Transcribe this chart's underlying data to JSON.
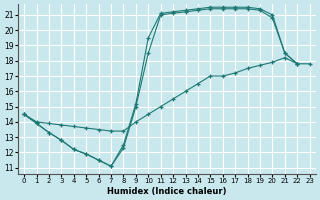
{
  "xlabel": "Humidex (Indice chaleur)",
  "bg_color": "#c8e8ee",
  "grid_color": "#ffffff",
  "line_color": "#1e7872",
  "xlim": [
    -0.5,
    23.5
  ],
  "ylim": [
    10.6,
    21.7
  ],
  "xticks": [
    0,
    1,
    2,
    3,
    4,
    5,
    6,
    7,
    8,
    9,
    10,
    11,
    12,
    13,
    14,
    15,
    16,
    17,
    18,
    19,
    20,
    21,
    22,
    23
  ],
  "yticks": [
    11,
    12,
    13,
    14,
    15,
    16,
    17,
    18,
    19,
    20,
    21
  ],
  "line_straight_x": [
    0,
    1,
    2,
    3,
    4,
    5,
    6,
    7,
    8,
    9,
    10,
    11,
    12,
    13,
    14,
    15,
    16,
    17,
    18,
    19,
    20,
    21,
    22,
    23
  ],
  "line_straight_y": [
    14.5,
    14.0,
    13.9,
    13.8,
    13.7,
    13.6,
    13.5,
    13.4,
    13.4,
    14.0,
    14.5,
    15.0,
    15.5,
    16.0,
    16.5,
    17.0,
    17.0,
    17.2,
    17.5,
    17.7,
    17.9,
    18.2,
    17.8,
    17.8
  ],
  "line_mid_x": [
    0,
    1,
    2,
    3,
    4,
    5,
    6,
    7,
    8,
    9,
    10,
    11,
    12,
    13,
    14,
    15,
    16,
    17,
    18,
    19,
    20,
    21,
    22
  ],
  "line_mid_y": [
    14.5,
    13.9,
    13.3,
    12.8,
    12.2,
    11.9,
    11.5,
    11.1,
    12.3,
    15.0,
    18.5,
    21.0,
    21.1,
    21.2,
    21.3,
    21.4,
    21.4,
    21.4,
    21.4,
    21.3,
    20.8,
    18.5,
    17.8
  ],
  "line_top_x": [
    0,
    1,
    2,
    3,
    4,
    5,
    6,
    7,
    8,
    9,
    10,
    11,
    12,
    13,
    14,
    15,
    16,
    17,
    18,
    19,
    20,
    21,
    22
  ],
  "line_top_y": [
    14.5,
    13.9,
    13.3,
    12.8,
    12.2,
    11.9,
    11.5,
    11.1,
    12.5,
    15.2,
    19.5,
    21.1,
    21.2,
    21.3,
    21.4,
    21.5,
    21.5,
    21.5,
    21.5,
    21.4,
    21.0,
    18.5,
    17.8
  ]
}
